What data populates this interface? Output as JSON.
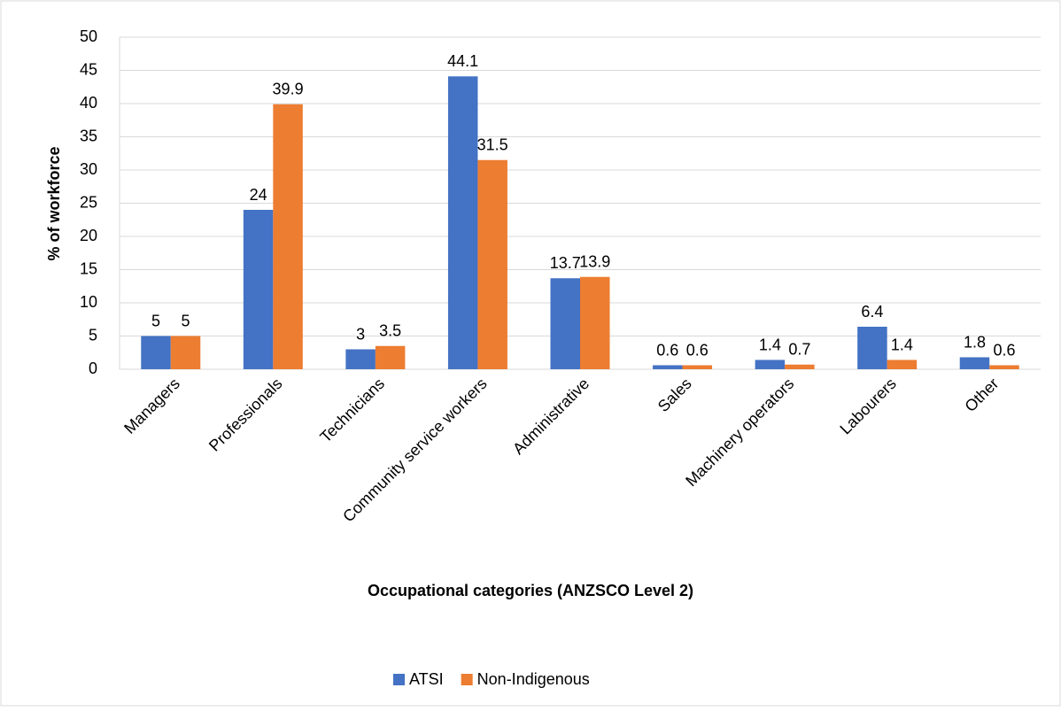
{
  "chart_data": {
    "type": "bar",
    "x_label": "Occupational categories (ANZSCO Level 2)",
    "y_label": "% of workforce",
    "categories": [
      "Managers",
      "Professionals",
      "Technicians",
      "Community service workers",
      "Administrative",
      "Sales",
      "Machinery operators",
      "Labourers",
      "Other"
    ],
    "series": [
      {
        "name": "ATSI",
        "color": "#4472c4",
        "values": [
          5,
          24,
          3,
          44.1,
          13.7,
          0.6,
          1.4,
          6.4,
          1.8
        ]
      },
      {
        "name": "Non-Indigenous",
        "color": "#ed7d31",
        "values": [
          5,
          39.9,
          3.5,
          31.5,
          13.9,
          0.6,
          0.7,
          1.4,
          0.6
        ]
      }
    ],
    "ylim": [
      0,
      50
    ],
    "yticks": [
      0,
      5,
      10,
      15,
      20,
      25,
      30,
      35,
      40,
      45,
      50
    ],
    "grid": true,
    "legend": "bottom"
  }
}
